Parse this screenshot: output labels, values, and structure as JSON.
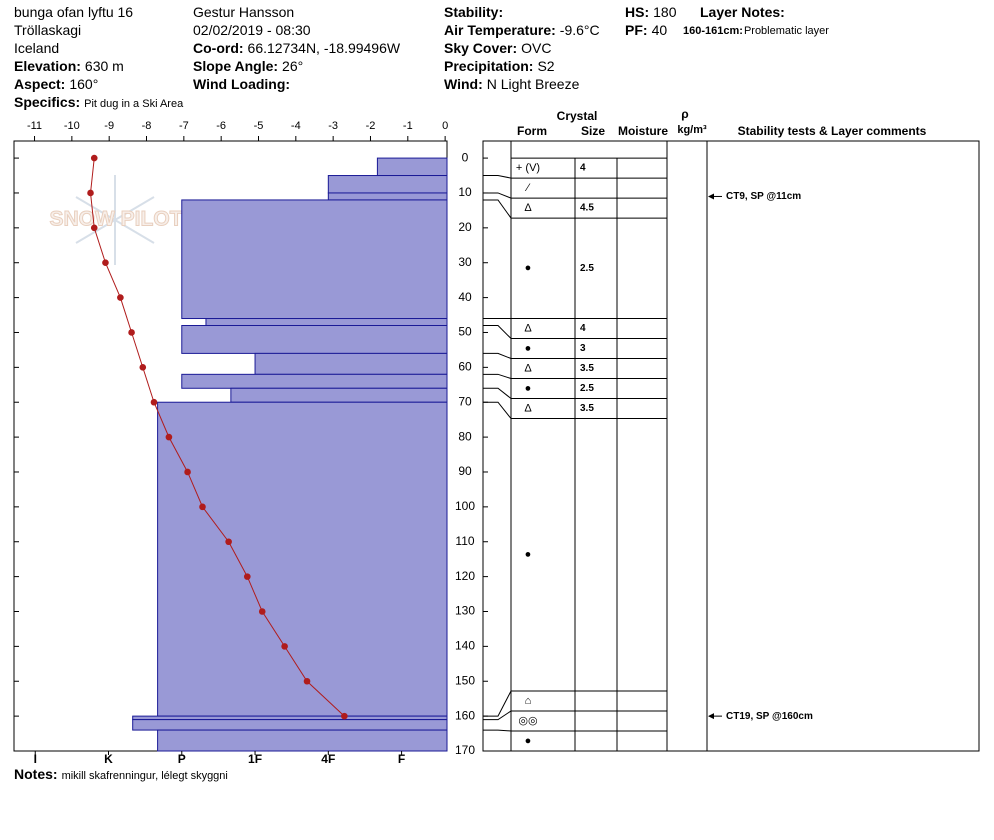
{
  "header": {
    "location": [
      "bunga ofan lyftu 16",
      "Tröllaskagi",
      "Iceland"
    ],
    "observer": "Gestur Hansson",
    "datetime": "02/02/2019 - 08:30",
    "fields": [
      {
        "label": "Elevation:",
        "value": "630 m"
      },
      {
        "label": "Aspect:",
        "value": "160°"
      },
      {
        "label": "Specifics:",
        "value": "Pit dug in a Ski Area"
      },
      {
        "label": "Co-ord:",
        "value": "66.12734N, -18.99496W"
      },
      {
        "label": "Slope Angle:",
        "value": "26°"
      },
      {
        "label": "Wind Loading:"
      },
      {
        "label": "Stability:"
      },
      {
        "label": "Air Temperature:",
        "value": "-9.6°C"
      },
      {
        "label": "Sky Cover:",
        "value": "OVC"
      },
      {
        "label": "Precipitation:",
        "value": "S2"
      },
      {
        "label": "Wind:",
        "value": "N Light Breeze"
      },
      {
        "label": "HS:",
        "value": "180"
      },
      {
        "label": "PF:",
        "value": "40"
      }
    ],
    "layer_notes_title": "Layer Notes:",
    "layer_notes": [
      {
        "depth": "160-161cm:",
        "comment": "Problematic layer"
      }
    ],
    "notes_label": "Notes:",
    "notes": "mikill skafrenningur, lélegt skyggni"
  },
  "chart_data": {
    "type": "snowprofile",
    "logo": "SNOW PILOT",
    "ylim": [
      -4.9,
      170
    ],
    "yticks": [
      0,
      10,
      20,
      30,
      40,
      50,
      60,
      70,
      80,
      90,
      100,
      110,
      120,
      130,
      140,
      150,
      160,
      170
    ],
    "temperature": {
      "color": "#b01c1c",
      "xlim": [
        -11.55,
        0.05
      ],
      "xticks": [
        -11,
        -10,
        -9,
        -8,
        -7,
        -6,
        -5,
        -4,
        -3,
        -2,
        -1,
        0
      ],
      "depths": [
        0,
        10,
        20,
        30,
        40,
        50,
        60,
        70,
        80,
        90,
        100,
        110,
        120,
        130,
        140,
        150,
        160
      ],
      "values": [
        -9.4,
        -9.5,
        -9.4,
        -9.1,
        -8.7,
        -8.4,
        -8.1,
        -7.8,
        -7.4,
        -6.9,
        -6.5,
        -5.8,
        -5.3,
        -4.9,
        -4.3,
        -3.7,
        -2.7
      ]
    },
    "hardness": {
      "color": "#9999d6",
      "xlim": [
        0.38,
        6.29
      ],
      "xticks": [
        {
          "value": 6,
          "label": "I"
        },
        {
          "value": 5,
          "label": "K"
        },
        {
          "value": 4,
          "label": "P"
        },
        {
          "value": 3,
          "label": "1F"
        },
        {
          "value": 2,
          "label": "4F"
        },
        {
          "value": 1,
          "label": "F"
        }
      ]
    },
    "layers": [
      {
        "top": 0,
        "bottom": 5,
        "hardness": 1.33,
        "form": "+ (V)",
        "size": 4
      },
      {
        "top": 5,
        "bottom": 10,
        "hardness": 2,
        "form": "⁄"
      },
      {
        "top": 10,
        "bottom": 12,
        "hardness": 2,
        "form": "Δ",
        "size": 4.5
      },
      {
        "top": 12,
        "bottom": 46,
        "hardness": 4,
        "form": "●",
        "size": 2.5
      },
      {
        "top": 46,
        "bottom": 48,
        "hardness": 3.67,
        "form": "Δ",
        "size": 4
      },
      {
        "top": 48,
        "bottom": 56,
        "hardness": 4,
        "form": "●",
        "size": 3
      },
      {
        "top": 56,
        "bottom": 62,
        "hardness": 3,
        "form": "Δ",
        "size": 3.5
      },
      {
        "top": 62,
        "bottom": 66,
        "hardness": 4,
        "form": "●",
        "size": 2.5
      },
      {
        "top": 66,
        "bottom": 70,
        "hardness": 3.33,
        "form": "Δ",
        "size": 3.5
      },
      {
        "top": 70,
        "bottom": 160,
        "hardness": 4.33,
        "form": "●"
      },
      {
        "top": 160,
        "bottom": 161,
        "hardness": 4.67,
        "form": "⌂"
      },
      {
        "top": 161,
        "bottom": 164,
        "hardness": 4.67,
        "form": "◎◎"
      },
      {
        "top": 164,
        "bottom": 170,
        "hardness": 4.33,
        "form": "●"
      }
    ],
    "columns": {
      "crystal": "Crystal",
      "form": "Form",
      "size": "Size",
      "moisture": "Moisture",
      "rho": "ρ",
      "density": "kg/m³",
      "comments": "Stability tests & Layer comments"
    },
    "tests": [
      {
        "depth": 11,
        "text": "CT9, SP @11cm"
      },
      {
        "depth": 160,
        "text": "CT19, SP @160cm"
      }
    ]
  }
}
